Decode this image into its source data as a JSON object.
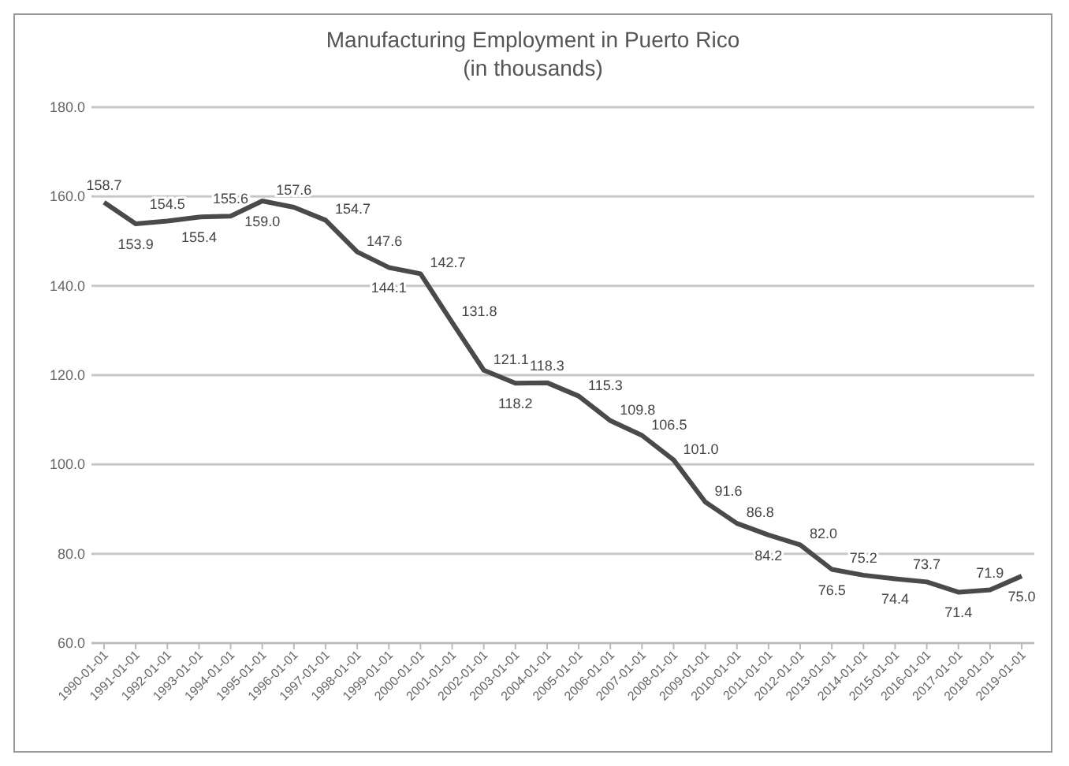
{
  "chart_data": {
    "type": "line",
    "title": "Manufacturing Employment in Puerto Rico",
    "subtitle": "(in thousands)",
    "categories": [
      "1990-01-01",
      "1991-01-01",
      "1992-01-01",
      "1993-01-01",
      "1994-01-01",
      "1995-01-01",
      "1996-01-01",
      "1997-01-01",
      "1998-01-01",
      "1999-01-01",
      "2000-01-01",
      "2001-01-01",
      "2002-01-01",
      "2003-01-01",
      "2004-01-01",
      "2005-01-01",
      "2006-01-01",
      "2007-01-01",
      "2008-01-01",
      "2009-01-01",
      "2010-01-01",
      "2011-01-01",
      "2012-01-01",
      "2013-01-01",
      "2014-01-01",
      "2015-01-01",
      "2016-01-01",
      "2017-01-01",
      "2018-01-01",
      "2019-01-01"
    ],
    "series": [
      {
        "color": "#4a4a4a",
        "values": [
          158.7,
          153.9,
          154.5,
          155.4,
          155.6,
          159.0,
          157.6,
          154.7,
          147.6,
          144.1,
          142.7,
          131.8,
          121.1,
          118.2,
          118.3,
          115.3,
          109.8,
          106.5,
          101.0,
          91.6,
          86.8,
          84.2,
          82.0,
          76.5,
          75.2,
          74.4,
          73.7,
          71.4,
          71.9,
          75.0
        ]
      }
    ],
    "value_labels": [
      "158.7",
      "153.9",
      "154.5",
      "155.4",
      "155.6",
      "159.0",
      "157.6",
      "154.7",
      "147.6",
      "144.1",
      "142.7",
      "131.8",
      "121.1",
      "118.2",
      "118.3",
      "115.3",
      "109.8",
      "106.5",
      "101.0",
      "91.6",
      "86.8",
      "84.2",
      "82.0",
      "76.5",
      "75.2",
      "74.4",
      "73.7",
      "71.4",
      "71.9",
      "75.0"
    ],
    "ylim": [
      60,
      180
    ],
    "yticks": [
      {
        "value": 60,
        "label": "60.0"
      },
      {
        "value": 80,
        "label": "80.0"
      },
      {
        "value": 100,
        "label": "100.0"
      },
      {
        "value": 120,
        "label": "120.0"
      },
      {
        "value": 140,
        "label": "140.0"
      },
      {
        "value": 160,
        "label": "160.0"
      },
      {
        "value": 180,
        "label": "180.0"
      }
    ],
    "grid": "y",
    "legend": false,
    "marker": "none",
    "line_style": "solid"
  }
}
